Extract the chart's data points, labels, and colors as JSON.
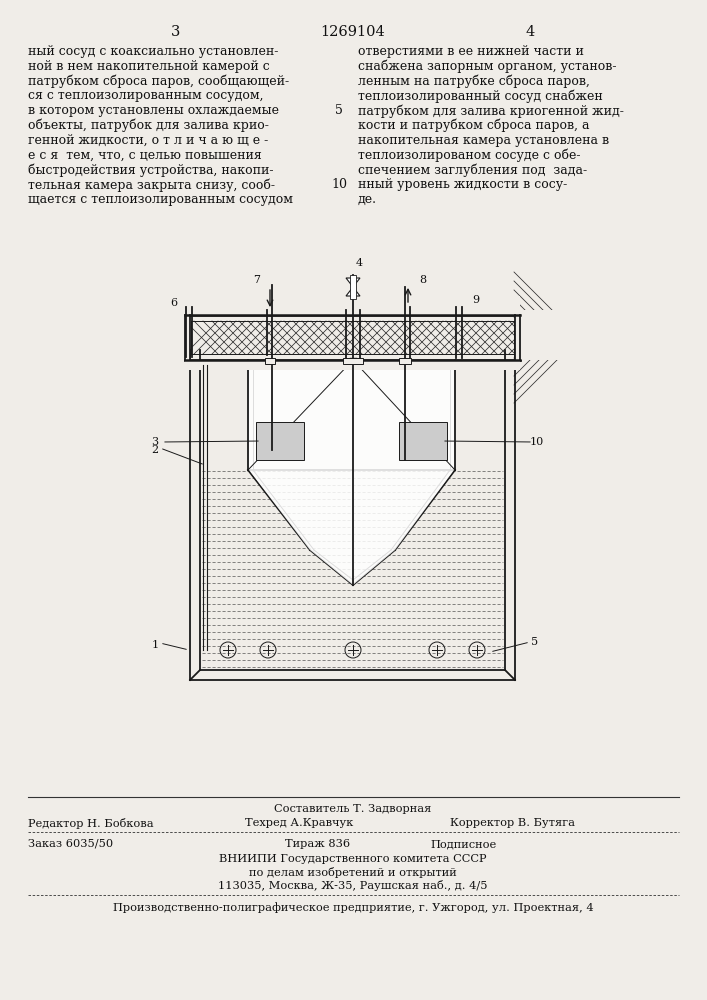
{
  "bg_color": "#f0ede8",
  "page_number_left": "3",
  "page_number_center": "1269104",
  "page_number_right": "4",
  "text_left": "ный сосуд с коаксиально установлен-\nной в нем накопительной камерой с\nпатрубком сброса паров, сообщающей-\nся с теплоизолированным сосудом,\nв котором установлены охлаждаемые\nобъекты, патрубок для залива крио-\nгенной жидкости, о т л и ч а ю щ е -\nе с я  тем, что, с целью повышения\nбыстродействия устройства, накопи-\nтельная камера закрыта снизу, сооб-\nщается с теплоизолированным сосудом",
  "text_right": "отверстиями в ее нижней части и\nснабжена запорным органом, установ-\nленным на патрубке сброса паров,\nтеплоизолированный сосуд снабжен\nпатрубком для залива криогенной жид-\nкости и патрубком сброса паров, а\nнакопительная камера установлена в\nтеплоизолированом сосуде с обе-\nспечением заглубления под  зада-\nнный уровень жидкости в сосу-\nде.",
  "line_number_5": "5",
  "line_number_10": "10",
  "editor_label": "Редактор Н. Бобкова",
  "composer_label": "Составитель Т. Задворная",
  "techred_label": "Техред А.Кравчук",
  "corrector_label": "Корректор В. Бутяга",
  "order_label": "Заказ 6035/50",
  "tirazh_label": "Тираж 836",
  "podpisnoe_label": "Подписное",
  "vniiipi_line1": "ВНИИПИ Государственного комитета СССР",
  "vniiipi_line2": "по делам изобретений и открытий",
  "vniiipi_line3": "113035, Москва, Ж-35, Раушская наб., д. 4/5",
  "proizv_label": "Производственно-полиграфическое предприятие, г. Ужгород, ул. Проектная, 4",
  "font_size_main": 9.0,
  "font_size_small": 8.2,
  "font_size_page": 10.5
}
